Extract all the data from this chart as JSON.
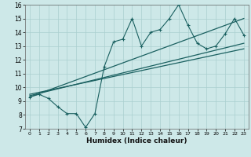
{
  "xlabel": "Humidex (Indice chaleur)",
  "ylabel": "",
  "xlim": [
    -0.5,
    23.5
  ],
  "ylim": [
    7,
    16
  ],
  "xticks": [
    0,
    1,
    2,
    3,
    4,
    5,
    6,
    7,
    8,
    9,
    10,
    11,
    12,
    13,
    14,
    15,
    16,
    17,
    18,
    19,
    20,
    21,
    22,
    23
  ],
  "yticks": [
    7,
    8,
    9,
    10,
    11,
    12,
    13,
    14,
    15,
    16
  ],
  "background_color": "#cde8e8",
  "grid_color": "#aacfcf",
  "line_color": "#1a6060",
  "main_x": [
    0,
    1,
    2,
    3,
    4,
    5,
    6,
    7,
    8,
    9,
    10,
    11,
    12,
    13,
    14,
    15,
    16,
    17,
    18,
    19,
    20,
    21,
    22,
    23
  ],
  "main_y": [
    9.3,
    9.5,
    9.2,
    8.6,
    8.1,
    8.1,
    7.1,
    8.1,
    11.5,
    13.3,
    13.5,
    15.0,
    13.0,
    14.0,
    14.2,
    15.0,
    16.0,
    14.5,
    13.2,
    12.8,
    13.0,
    13.9,
    15.0,
    13.8
  ],
  "trend1_x": [
    0,
    23
  ],
  "trend1_y": [
    9.3,
    15.0
  ],
  "trend2_x": [
    0,
    23
  ],
  "trend2_y": [
    9.4,
    13.2
  ],
  "trend3_x": [
    0,
    23
  ],
  "trend3_y": [
    9.5,
    12.8
  ]
}
